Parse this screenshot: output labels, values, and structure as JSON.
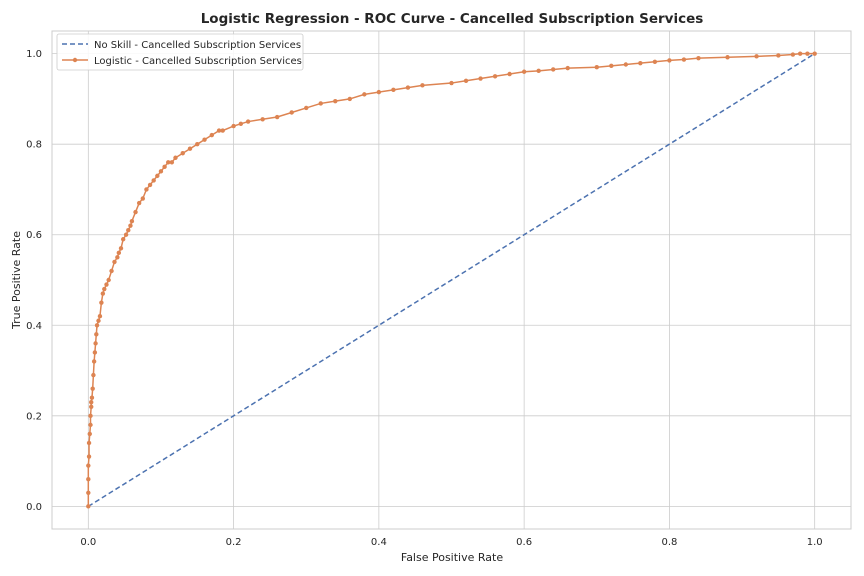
{
  "chart_data": {
    "type": "line",
    "title": "Logistic Regression - ROC Curve - Cancelled Subscription Services",
    "xlabel": "False Positive Rate",
    "ylabel": "True Positive Rate",
    "xlim": [
      -0.05,
      1.05
    ],
    "ylim": [
      -0.05,
      1.05
    ],
    "xticks": [
      "0.0",
      "0.2",
      "0.4",
      "0.6",
      "0.8",
      "1.0"
    ],
    "yticks": [
      "0.0",
      "0.2",
      "0.4",
      "0.6",
      "0.8",
      "1.0"
    ],
    "grid": true,
    "legend_position": "top-left",
    "series": [
      {
        "name": "No Skill - Cancelled Subscription Services",
        "style": "dashed",
        "color": "#4c72b0",
        "x": [
          0.0,
          1.0
        ],
        "y": [
          0.0,
          1.0
        ]
      },
      {
        "name": "Logistic - Cancelled Subscription Services",
        "style": "solid-marker",
        "color": "#dd8452",
        "x": [
          0.0,
          0.0,
          0.0,
          0.0,
          0.001,
          0.001,
          0.002,
          0.003,
          0.003,
          0.004,
          0.004,
          0.005,
          0.006,
          0.007,
          0.008,
          0.009,
          0.01,
          0.011,
          0.012,
          0.014,
          0.016,
          0.018,
          0.02,
          0.022,
          0.025,
          0.028,
          0.032,
          0.036,
          0.04,
          0.042,
          0.045,
          0.048,
          0.052,
          0.055,
          0.058,
          0.06,
          0.065,
          0.07,
          0.075,
          0.08,
          0.085,
          0.09,
          0.095,
          0.1,
          0.105,
          0.11,
          0.115,
          0.12,
          0.13,
          0.14,
          0.15,
          0.16,
          0.17,
          0.18,
          0.185,
          0.2,
          0.21,
          0.22,
          0.24,
          0.26,
          0.28,
          0.3,
          0.32,
          0.34,
          0.36,
          0.38,
          0.4,
          0.42,
          0.44,
          0.46,
          0.5,
          0.52,
          0.54,
          0.56,
          0.58,
          0.6,
          0.62,
          0.64,
          0.66,
          0.7,
          0.72,
          0.74,
          0.76,
          0.78,
          0.8,
          0.82,
          0.84,
          0.88,
          0.92,
          0.95,
          0.97,
          0.98,
          0.99,
          1.0
        ],
        "y": [
          0.0,
          0.03,
          0.06,
          0.09,
          0.11,
          0.14,
          0.16,
          0.18,
          0.2,
          0.22,
          0.23,
          0.24,
          0.26,
          0.29,
          0.32,
          0.34,
          0.36,
          0.38,
          0.4,
          0.41,
          0.42,
          0.45,
          0.47,
          0.48,
          0.49,
          0.5,
          0.52,
          0.54,
          0.55,
          0.56,
          0.57,
          0.59,
          0.6,
          0.61,
          0.62,
          0.63,
          0.65,
          0.67,
          0.68,
          0.7,
          0.71,
          0.72,
          0.73,
          0.74,
          0.75,
          0.76,
          0.76,
          0.77,
          0.78,
          0.79,
          0.8,
          0.81,
          0.82,
          0.83,
          0.83,
          0.84,
          0.845,
          0.85,
          0.855,
          0.86,
          0.87,
          0.88,
          0.89,
          0.895,
          0.9,
          0.91,
          0.915,
          0.92,
          0.925,
          0.93,
          0.935,
          0.94,
          0.945,
          0.95,
          0.955,
          0.96,
          0.962,
          0.965,
          0.968,
          0.97,
          0.973,
          0.976,
          0.979,
          0.982,
          0.985,
          0.987,
          0.99,
          0.992,
          0.994,
          0.996,
          0.998,
          1.0,
          1.0,
          1.0
        ]
      }
    ]
  }
}
